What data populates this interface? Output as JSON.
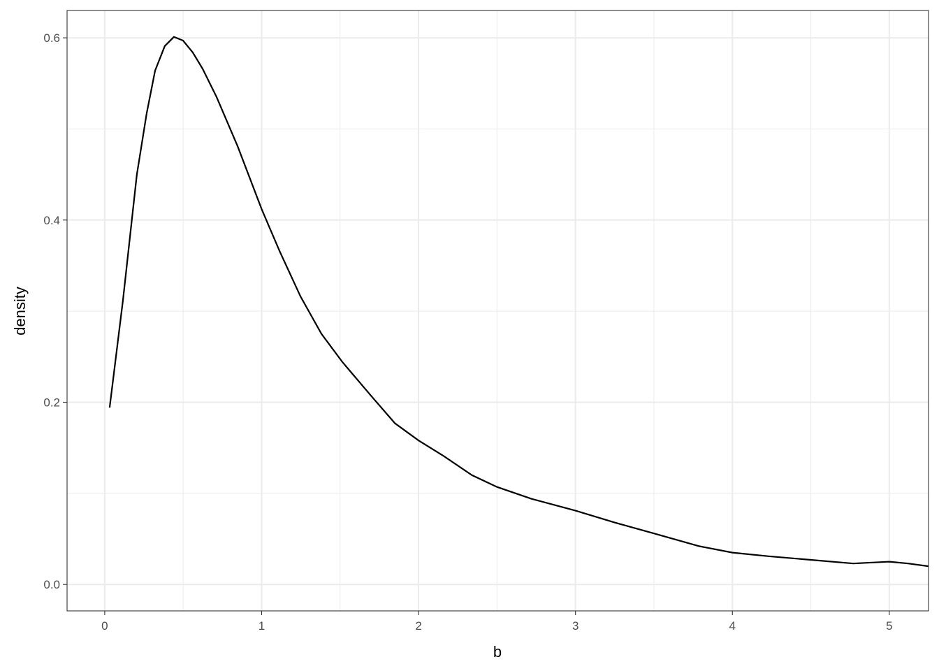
{
  "chart_data": {
    "type": "line",
    "title": "",
    "xlabel": "b",
    "ylabel": "density",
    "xlim": [
      -0.24,
      5.25
    ],
    "ylim": [
      -0.029,
      0.63
    ],
    "x_ticks": [
      0,
      1,
      2,
      3,
      4,
      5
    ],
    "x_tick_labels": [
      "0",
      "1",
      "2",
      "3",
      "4",
      "5"
    ],
    "y_ticks": [
      0.0,
      0.2,
      0.4,
      0.6
    ],
    "y_tick_labels": [
      "0.0",
      "0.2",
      "0.4",
      "0.6"
    ],
    "grid": true,
    "theme": "black-and-white",
    "line_color": "#000000",
    "series": [
      {
        "x": [
          0.031,
          0.116,
          0.205,
          0.267,
          0.321,
          0.383,
          0.441,
          0.499,
          0.561,
          0.624,
          0.713,
          0.847,
          1.0,
          1.114,
          1.248,
          1.381,
          1.515,
          1.693,
          1.849,
          2.0,
          2.16,
          2.34,
          2.5,
          2.72,
          3.0,
          3.25,
          3.5,
          3.79,
          4.0,
          4.23,
          4.5,
          4.77,
          5.0,
          5.12,
          5.25
        ],
        "y": [
          0.194,
          0.312,
          0.45,
          0.517,
          0.564,
          0.591,
          0.601,
          0.597,
          0.584,
          0.566,
          0.535,
          0.481,
          0.412,
          0.366,
          0.316,
          0.275,
          0.244,
          0.208,
          0.177,
          0.158,
          0.141,
          0.12,
          0.107,
          0.094,
          0.081,
          0.068,
          0.056,
          0.042,
          0.035,
          0.031,
          0.027,
          0.023,
          0.025,
          0.023,
          0.02
        ]
      }
    ]
  }
}
